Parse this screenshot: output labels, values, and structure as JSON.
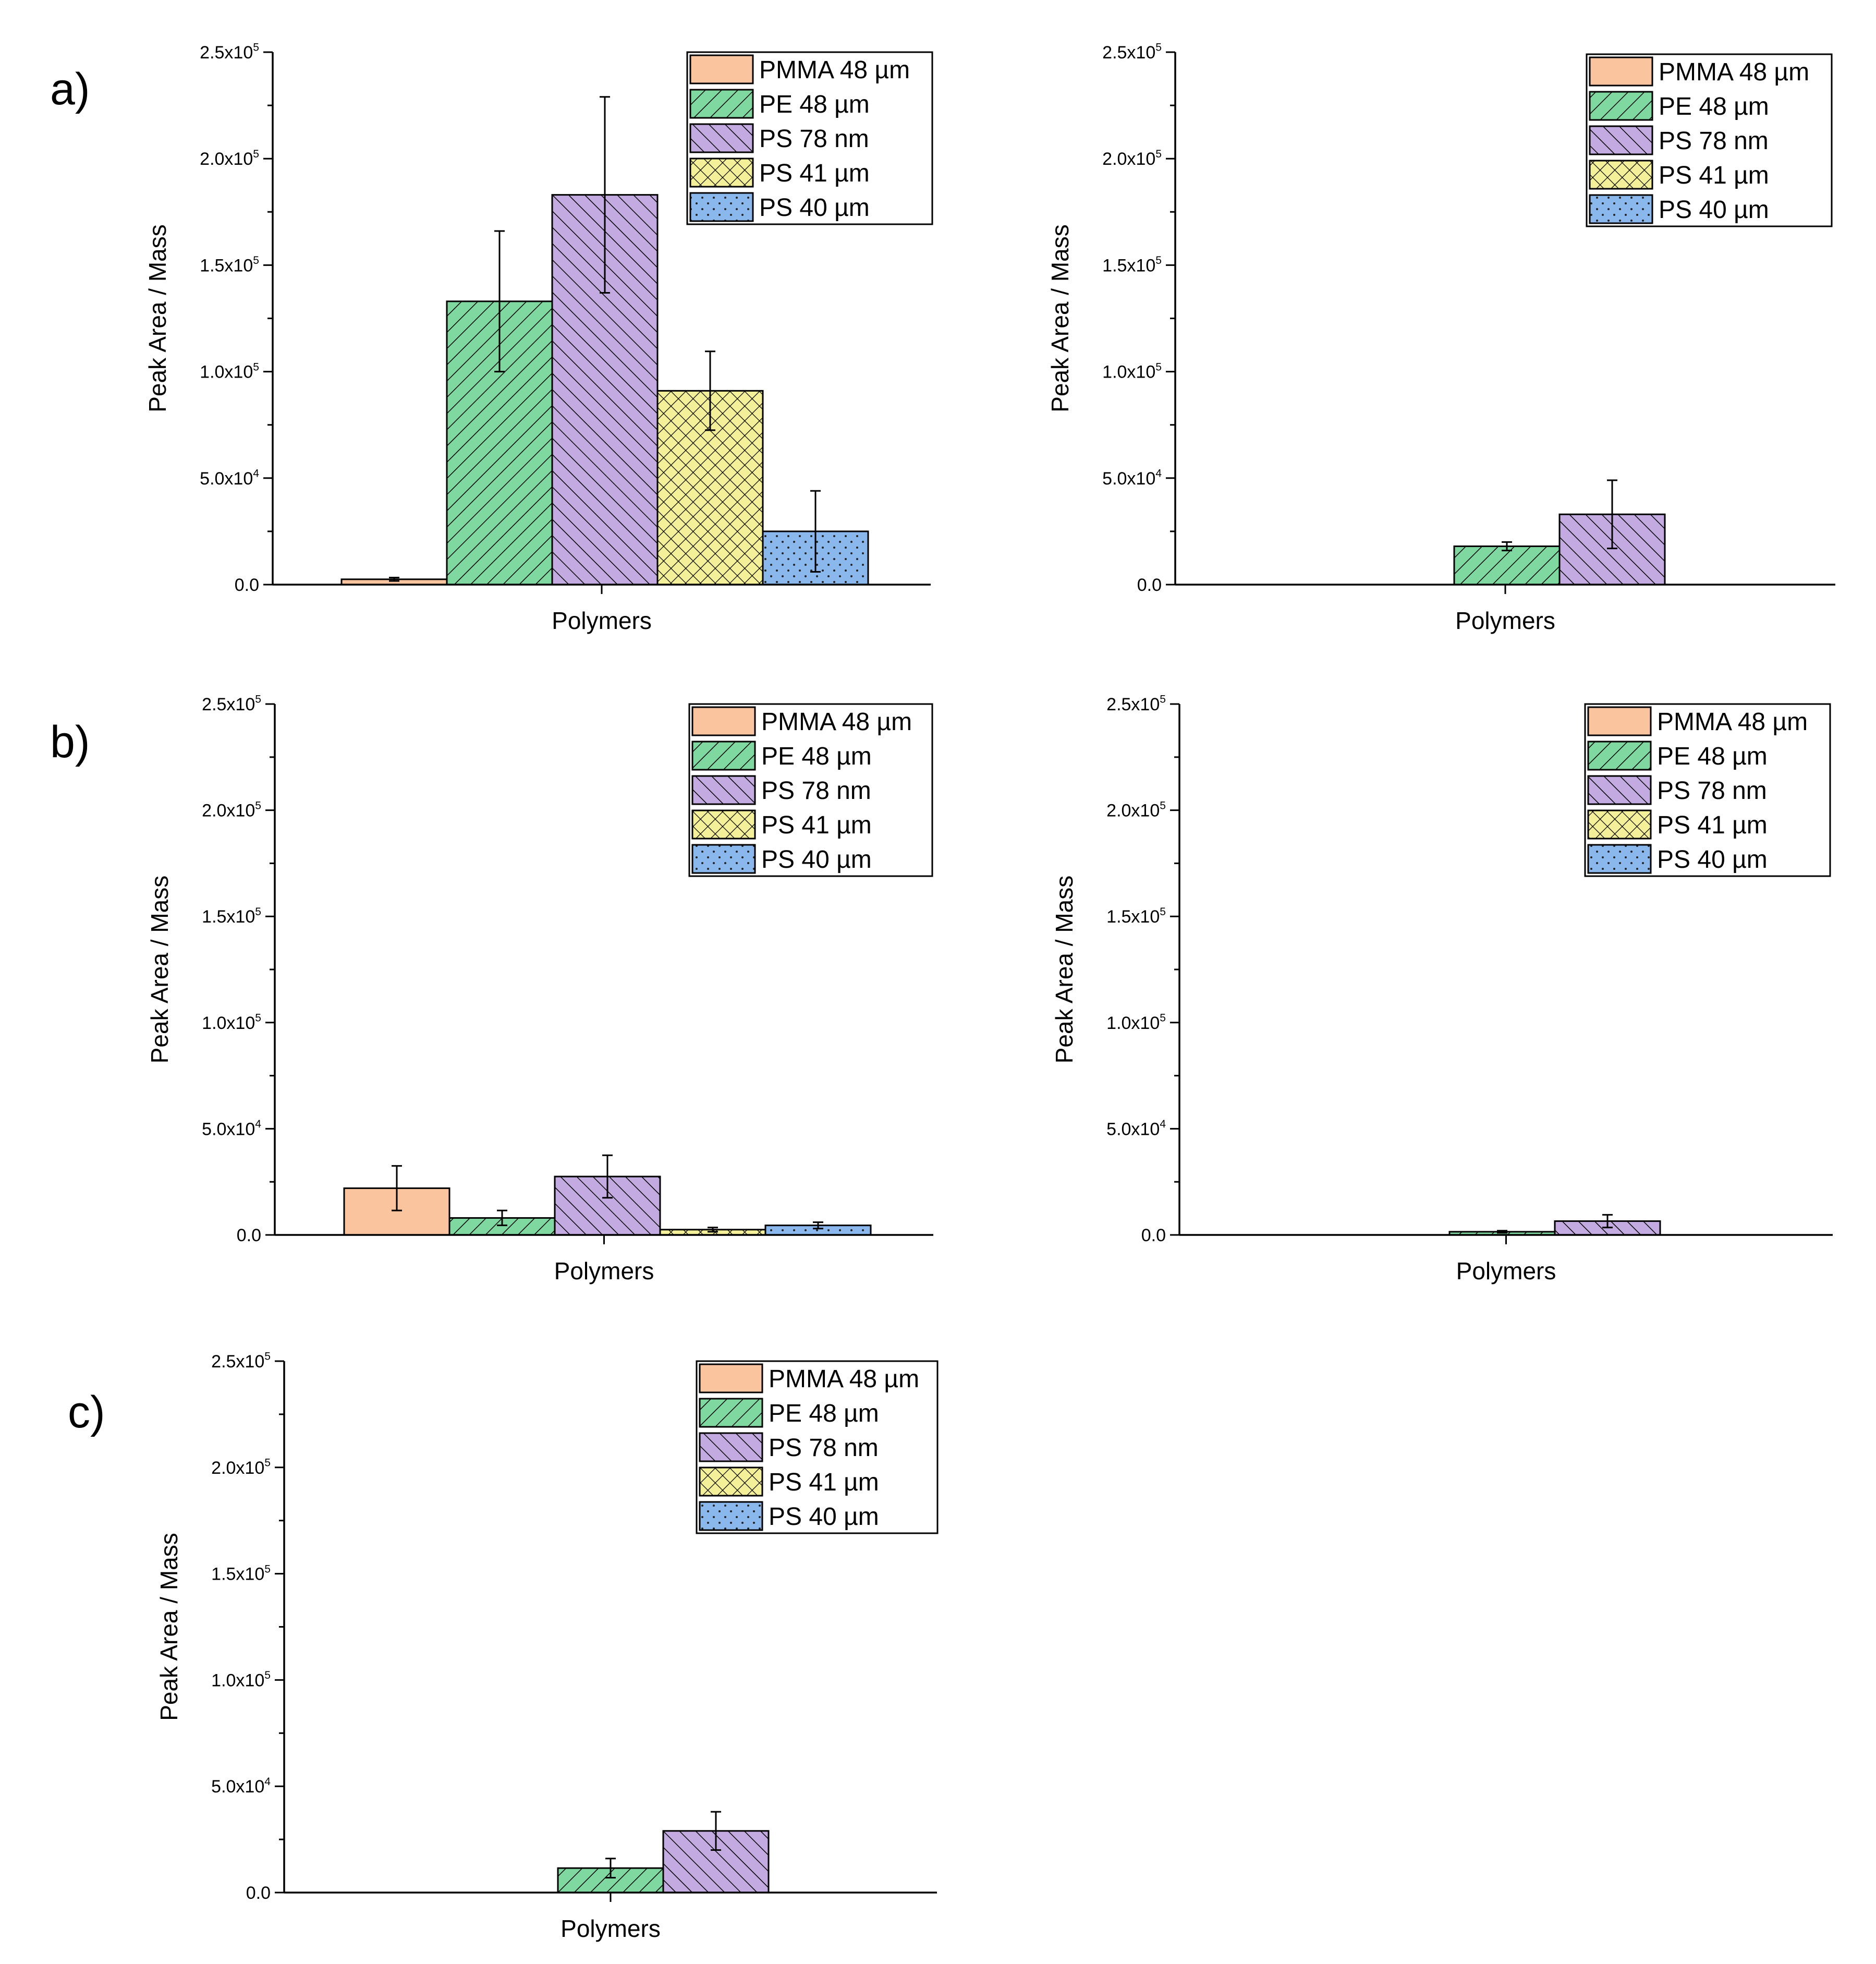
{
  "figure": {
    "panel_labels": [
      "a)",
      "b)",
      "c)"
    ]
  },
  "legend_colors": {
    "PMMA 48 µm": "#f9c49e",
    "PE 48 µm": "#7ed8a0",
    "PS 78 nm": "#c3aae0",
    "PS 41 µm": "#f4f09a",
    "PS 40 µm": "#8ab8ec"
  },
  "legend_patterns": {
    "PMMA 48 µm": "solid",
    "PE 48 µm": "diag-right",
    "PS 78 nm": "diag-left",
    "PS 41 µm": "crosshatch",
    "PS 40 µm": "dots"
  },
  "chart_data": [
    {
      "id": "a-left",
      "type": "bar",
      "title": "",
      "xlabel": "Polymers",
      "ylabel": "Peak Area / Mass",
      "ylim": [
        0,
        250000
      ],
      "yticks": [
        {
          "value": 0,
          "label": "0.0"
        },
        {
          "value": 50000,
          "label": "5.0x10⁴"
        },
        {
          "value": 100000,
          "label": "1.0x10⁵"
        },
        {
          "value": 150000,
          "label": "1.5x10⁵"
        },
        {
          "value": 200000,
          "label": "2.0x10⁵"
        },
        {
          "value": 250000,
          "label": "2.5x10⁵"
        }
      ],
      "legend": [
        "PMMA 48 µm",
        "PE 48 µm",
        "PS 78 nm",
        "PS 41 µm",
        "PS 40 µm"
      ],
      "legend_position": "top-right",
      "series": [
        {
          "name": "PMMA 48 µm",
          "value": 2500,
          "error": 800
        },
        {
          "name": "PE 48 µm",
          "value": 133000,
          "error": 33000
        },
        {
          "name": "PS 78 nm",
          "value": 183000,
          "error": 46000
        },
        {
          "name": "PS 41 µm",
          "value": 91000,
          "error": 18500
        },
        {
          "name": "PS 40 µm",
          "value": 25000,
          "error": 19000
        }
      ]
    },
    {
      "id": "a-right",
      "type": "bar",
      "title": "",
      "xlabel": "Polymers",
      "ylabel": "Peak Area / Mass",
      "ylim": [
        0,
        250000
      ],
      "yticks": [
        {
          "value": 0,
          "label": "0.0"
        },
        {
          "value": 50000,
          "label": "5.0x10⁴"
        },
        {
          "value": 100000,
          "label": "1.0x10⁵"
        },
        {
          "value": 150000,
          "label": "1.5x10⁵"
        },
        {
          "value": 200000,
          "label": "2.0x10⁵"
        },
        {
          "value": 250000,
          "label": "2.5x10⁵"
        }
      ],
      "legend": [
        "PMMA 48 µm",
        "PE 48 µm",
        "PS 78 nm",
        "PS 41 µm",
        "PS 40 µm"
      ],
      "legend_position": "top-right",
      "series": [
        {
          "name": "PE 48 µm",
          "value": 18000,
          "error": 2000
        },
        {
          "name": "PS 78 nm",
          "value": 33000,
          "error": 16000
        }
      ]
    },
    {
      "id": "b-left",
      "type": "bar",
      "title": "",
      "xlabel": "Polymers",
      "ylabel": "Peak Area / Mass",
      "ylim": [
        0,
        250000
      ],
      "yticks": [
        {
          "value": 0,
          "label": "0.0"
        },
        {
          "value": 50000,
          "label": "5.0x10⁴"
        },
        {
          "value": 100000,
          "label": "1.0x10⁵"
        },
        {
          "value": 150000,
          "label": "1.5x10⁵"
        },
        {
          "value": 200000,
          "label": "2.0x10⁵"
        },
        {
          "value": 250000,
          "label": "2.5x10⁵"
        }
      ],
      "legend": [
        "PMMA 48 µm",
        "PE 48 µm",
        "PS 78 nm",
        "PS 41 µm",
        "PS 40 µm"
      ],
      "legend_position": "top-right",
      "series": [
        {
          "name": "PMMA 48 µm",
          "value": 22000,
          "error": 10500
        },
        {
          "name": "PE 48 µm",
          "value": 8000,
          "error": 3500
        },
        {
          "name": "PS 78 nm",
          "value": 27500,
          "error": 10000
        },
        {
          "name": "PS 41 µm",
          "value": 2500,
          "error": 1000
        },
        {
          "name": "PS 40 µm",
          "value": 4500,
          "error": 1500
        }
      ]
    },
    {
      "id": "b-right",
      "type": "bar",
      "title": "",
      "xlabel": "Polymers",
      "ylabel": "Peak Area / Mass",
      "ylim": [
        0,
        250000
      ],
      "yticks": [
        {
          "value": 0,
          "label": "0.0"
        },
        {
          "value": 50000,
          "label": "5.0x10⁴"
        },
        {
          "value": 100000,
          "label": "1.0x10⁵"
        },
        {
          "value": 150000,
          "label": "1.5x10⁵"
        },
        {
          "value": 200000,
          "label": "2.0x10⁵"
        },
        {
          "value": 250000,
          "label": "2.5x10⁵"
        }
      ],
      "legend": [
        "PMMA 48 µm",
        "PE 48 µm",
        "PS 78 nm",
        "PS 41 µm",
        "PS 40 µm"
      ],
      "legend_position": "top-right",
      "series": [
        {
          "name": "PE 48 µm",
          "value": 1500,
          "error": 500
        },
        {
          "name": "PS 78 nm",
          "value": 6500,
          "error": 3000
        }
      ]
    },
    {
      "id": "c",
      "type": "bar",
      "title": "",
      "xlabel": "Polymers",
      "ylabel": "Peak Area / Mass",
      "ylim": [
        0,
        250000
      ],
      "yticks": [
        {
          "value": 0,
          "label": "0.0"
        },
        {
          "value": 50000,
          "label": "5.0x10⁴"
        },
        {
          "value": 100000,
          "label": "1.0x10⁵"
        },
        {
          "value": 150000,
          "label": "1.5x10⁵"
        },
        {
          "value": 200000,
          "label": "2.0x10⁵"
        },
        {
          "value": 250000,
          "label": "2.5x10⁵"
        }
      ],
      "legend": [
        "PMMA 48 µm",
        "PE 48 µm",
        "PS 78 nm",
        "PS 41 µm",
        "PS 40 µm"
      ],
      "legend_position": "top-right",
      "series": [
        {
          "name": "PE 48 µm",
          "value": 11500,
          "error": 4500
        },
        {
          "name": "PS 78 nm",
          "value": 29000,
          "error": 9000
        }
      ]
    }
  ]
}
